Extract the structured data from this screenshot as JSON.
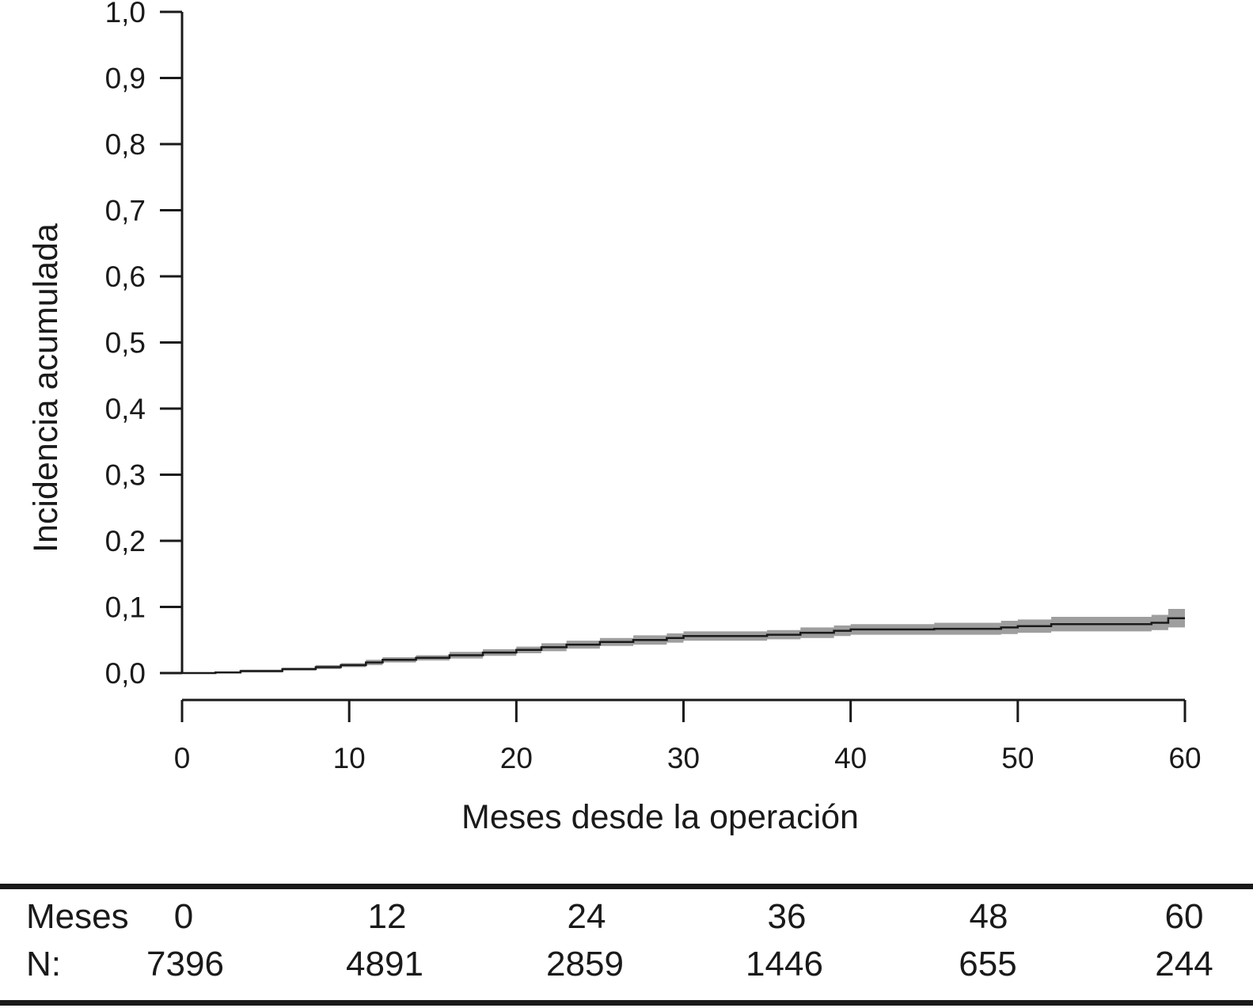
{
  "chart_data": {
    "type": "line",
    "title": "",
    "xlabel": "Meses desde la operación",
    "ylabel": "Incidencia acumulada",
    "xlim": [
      0,
      60
    ],
    "ylim": [
      0,
      1.0
    ],
    "x_ticks": [
      "0",
      "10",
      "20",
      "30",
      "40",
      "50",
      "60"
    ],
    "y_ticks": [
      "0,0",
      "0,1",
      "0,2",
      "0,3",
      "0,4",
      "0,5",
      "0,6",
      "0,7",
      "0,8",
      "0,9",
      "1,0"
    ],
    "grid": false,
    "legend": "none",
    "series": [
      {
        "style": "step",
        "color": "#1a1a1a",
        "band_color": "#9e9e9e",
        "x": [
          0,
          2,
          3.5,
          6,
          8,
          9.5,
          11,
          12,
          14,
          16,
          18,
          20,
          21.5,
          23,
          25,
          27,
          29,
          30,
          35,
          37,
          39,
          40,
          45,
          49,
          50,
          52,
          55,
          58,
          59,
          60
        ],
        "y": [
          0,
          0.001,
          0.003,
          0.006,
          0.009,
          0.012,
          0.016,
          0.02,
          0.023,
          0.027,
          0.031,
          0.035,
          0.039,
          0.043,
          0.047,
          0.05,
          0.053,
          0.056,
          0.058,
          0.061,
          0.064,
          0.066,
          0.067,
          0.069,
          0.071,
          0.074,
          0.074,
          0.076,
          0.083,
          0.083
        ],
        "lower": [
          0,
          0.0,
          0.001,
          0.004,
          0.006,
          0.009,
          0.012,
          0.016,
          0.019,
          0.022,
          0.026,
          0.03,
          0.033,
          0.037,
          0.041,
          0.043,
          0.046,
          0.049,
          0.051,
          0.053,
          0.056,
          0.058,
          0.058,
          0.059,
          0.061,
          0.063,
          0.063,
          0.065,
          0.069,
          0.069
        ],
        "upper": [
          0,
          0.002,
          0.005,
          0.008,
          0.012,
          0.015,
          0.02,
          0.024,
          0.027,
          0.032,
          0.036,
          0.04,
          0.045,
          0.049,
          0.053,
          0.057,
          0.06,
          0.063,
          0.065,
          0.069,
          0.072,
          0.074,
          0.076,
          0.079,
          0.081,
          0.085,
          0.085,
          0.088,
          0.097,
          0.097
        ]
      }
    ]
  },
  "risk_table": {
    "row_header": "Meses",
    "n_label": "N:",
    "columns": [
      {
        "month": "0",
        "n": "7396"
      },
      {
        "month": "12",
        "n": "4891"
      },
      {
        "month": "24",
        "n": "2859"
      },
      {
        "month": "36",
        "n": "1446"
      },
      {
        "month": "48",
        "n": "655"
      },
      {
        "month": "60",
        "n": "244"
      }
    ]
  }
}
